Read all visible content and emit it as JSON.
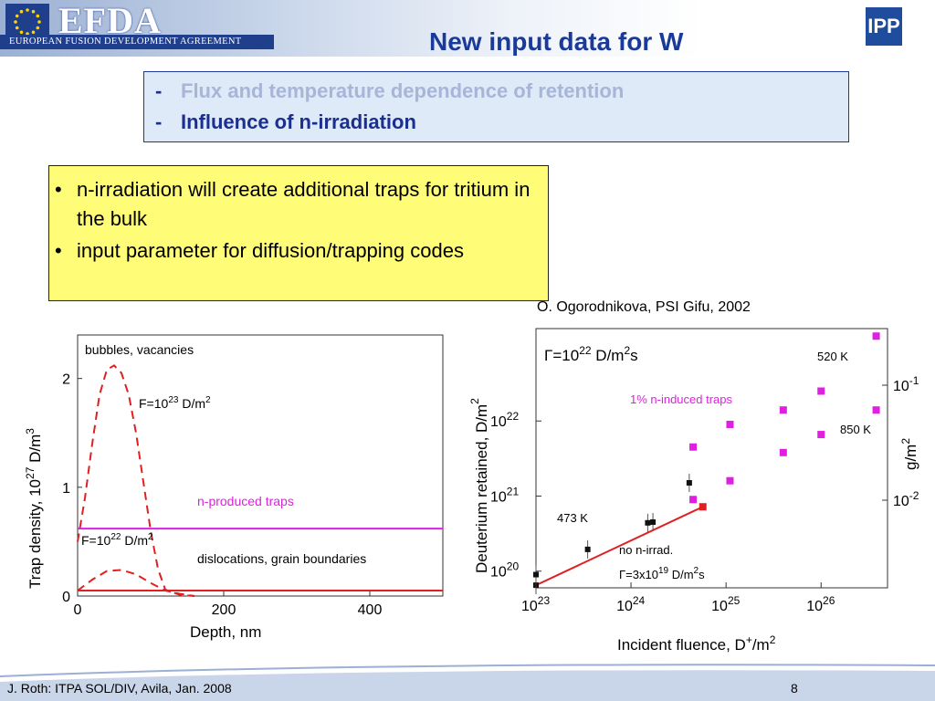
{
  "header": {
    "logo_text": "EFDA",
    "logo_subtitle": "EUROPEAN FUSION DEVELOPMENT AGREEMENT",
    "right_logo_text": "IPP",
    "title": "New input data for W"
  },
  "agenda": {
    "dash": "-",
    "items": [
      {
        "label": "Flux and temperature dependence of retention",
        "color": "#a8b4d8"
      },
      {
        "label": "Influence of n-irradiation",
        "color": "#1a2f8f"
      }
    ]
  },
  "bullets": {
    "symbol": "•",
    "items": [
      "n-irradiation will create additional traps for tritium in the bulk",
      "input parameter for diffusion/trapping codes"
    ]
  },
  "citation": "O. Ogorodnikova, PSI Gifu, 2002",
  "chart_data": [
    {
      "type": "line",
      "xlabel": "Depth, nm",
      "ylabel_parts": [
        "Trap density, 10",
        "27",
        " D/m",
        "3"
      ],
      "xlim": [
        0,
        500
      ],
      "ylim": [
        0,
        2.4
      ],
      "x_ticks": [
        "0",
        "200",
        "400"
      ],
      "y_ticks": [
        "0",
        "1",
        "2"
      ],
      "annotations": {
        "bubbles": "bubbles, vacancies",
        "f23_base": "F=10",
        "f23_exp": "23",
        "f23_unit": " D/m",
        "f23_unit_exp": "2",
        "n_traps": "n-produced traps",
        "f22_base": "F=10",
        "f22_exp": "22",
        "f22_unit": " D/m",
        "f22_unit_exp": "2",
        "dislocations": "dislocations, grain boundaries"
      },
      "series": [
        {
          "style": "dashed",
          "color": "#e02020",
          "x": [
            0,
            10,
            20,
            30,
            40,
            50,
            60,
            70,
            80,
            90,
            100,
            110,
            120,
            140,
            160
          ],
          "y": [
            0.5,
            0.9,
            1.4,
            1.85,
            2.08,
            2.12,
            2.05,
            1.85,
            1.5,
            1.05,
            0.6,
            0.25,
            0.06,
            0.01,
            0.0
          ]
        },
        {
          "style": "dashed",
          "color": "#e02020",
          "x": [
            0,
            20,
            40,
            60,
            80,
            100,
            120,
            140,
            160
          ],
          "y": [
            0.05,
            0.15,
            0.23,
            0.24,
            0.2,
            0.12,
            0.05,
            0.02,
            0.0
          ]
        },
        {
          "style": "solid",
          "color": "#e020e0",
          "x": [
            0,
            500
          ],
          "y": [
            0.62,
            0.62
          ]
        },
        {
          "style": "solid",
          "color": "#e02020",
          "x": [
            0,
            500
          ],
          "y": [
            0.05,
            0.05
          ]
        }
      ]
    },
    {
      "type": "scatter",
      "xlabel": "Incident fluence, D",
      "xlabel_sup": "+",
      "xlabel_tail": "/m",
      "xlabel_tail_exp": "2",
      "ylabel_left": "Deuterium retained, D/m",
      "ylabel_left_exp": "2",
      "ylabel_right": "g/m",
      "ylabel_right_exp": "2",
      "log_x": true,
      "log_y": true,
      "xlim": [
        1e+23,
        5e+26
      ],
      "ylim": [
        6e+19,
        1.7e+23
      ],
      "x_ticks": [
        {
          "base": "10",
          "exp": "23"
        },
        {
          "base": "10",
          "exp": "24"
        },
        {
          "base": "10",
          "exp": "25"
        },
        {
          "base": "10",
          "exp": "26"
        }
      ],
      "y_ticks": [
        {
          "base": "10",
          "exp": "20"
        },
        {
          "base": "10",
          "exp": "21"
        },
        {
          "base": "10",
          "exp": "22"
        }
      ],
      "right_ticks": [
        {
          "base": "10",
          "exp": "-1"
        },
        {
          "base": "10",
          "exp": "-2"
        }
      ],
      "annotations": {
        "flux_base": "Γ=10",
        "flux_exp": "22",
        "flux_unit": " D/m",
        "flux_unit_exp": "2",
        "flux_tail": "s",
        "t520": "520 K",
        "induced": "1% n-induced traps",
        "t850": "850 K",
        "t473": "473 K",
        "no_irrad": "no n-irrad.",
        "gamma_base": "Γ=3x10",
        "gamma_exp": "19",
        "gamma_unit": " D/m",
        "gamma_unit_exp": "2",
        "gamma_tail": "s"
      },
      "series": [
        {
          "marker": "square",
          "color": "#111111",
          "x": [
            1e+23,
            1e+23,
            3.5e+23,
            1.5e+24,
            1.7e+24,
            4.1e+24
          ],
          "y": [
            6.5e+19,
            9e+19,
            1.95e+20,
            4.4e+20,
            4.5e+20,
            1.5e+21
          ]
        },
        {
          "marker": "square",
          "color": "#e020e0",
          "x": [
            4.5e+24,
            1.1e+25,
            4e+25,
            1e+26,
            3.8e+26
          ],
          "y": [
            4.5e+21,
            9e+21,
            1.4e+22,
            2.5e+22,
            1.4e+22
          ]
        },
        {
          "marker": "square",
          "color": "#e020e0",
          "x": [
            4.5e+24,
            1.1e+25,
            4e+25,
            1e+26,
            3.8e+26
          ],
          "y": [
            9e+20,
            1.6e+21,
            3.8e+21,
            6.6e+21,
            1.35e+23
          ]
        },
        {
          "marker": "square",
          "color": "#e02020",
          "x": [
            5.7e+24
          ],
          "y": [
            7.2e+20
          ]
        }
      ],
      "fit_line": {
        "color": "#e02020",
        "x": [
          1e+23,
          5.7e+24
        ],
        "y": [
          6.5e+19,
          7.2e+20
        ]
      }
    }
  ],
  "footer": {
    "left": "J. Roth: ITPA SOL/DIV, Avila, Jan. 2008",
    "page": "8"
  }
}
